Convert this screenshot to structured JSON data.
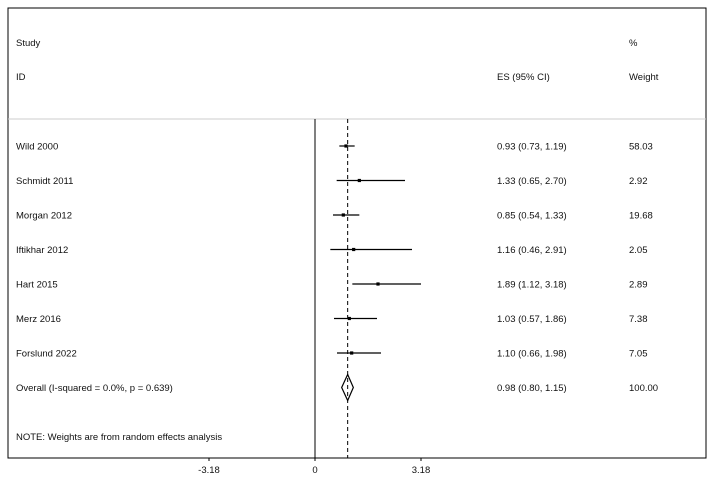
{
  "header": {
    "study_label": "Study",
    "id_label": "ID",
    "es_label": "ES (95% CI)",
    "percent_label": "%",
    "weight_label": "Weight"
  },
  "note": "NOTE: Weights are from random effects analysis",
  "colors": {
    "line": "#000000",
    "separator": "#cccccc",
    "background": "#ffffff"
  },
  "chart_data": {
    "type": "forest",
    "title": "",
    "xlabel": "",
    "ylabel": "",
    "xlim": [
      -6.36,
      6.36
    ],
    "xticks": [
      -3.18,
      0,
      3.18
    ],
    "xtick_labels": [
      "-3.18",
      "0",
      "3.18"
    ],
    "null_line": 0,
    "pooled_reference": 0.98,
    "studies": [
      {
        "id": "Wild 2000",
        "es": 0.93,
        "lo": 0.73,
        "hi": 1.19,
        "es_text": "0.93 (0.73, 1.19)",
        "weight": "58.03"
      },
      {
        "id": "Schmidt 2011",
        "es": 1.33,
        "lo": 0.65,
        "hi": 2.7,
        "es_text": "1.33 (0.65, 2.70)",
        "weight": "2.92"
      },
      {
        "id": "Morgan 2012",
        "es": 0.85,
        "lo": 0.54,
        "hi": 1.33,
        "es_text": "0.85 (0.54, 1.33)",
        "weight": "19.68"
      },
      {
        "id": "Iftikhar 2012",
        "es": 1.16,
        "lo": 0.46,
        "hi": 2.91,
        "es_text": "1.16 (0.46, 2.91)",
        "weight": "2.05"
      },
      {
        "id": "Hart 2015",
        "es": 1.89,
        "lo": 1.12,
        "hi": 3.18,
        "es_text": "1.89 (1.12, 3.18)",
        "weight": "2.89"
      },
      {
        "id": "Merz 2016",
        "es": 1.03,
        "lo": 0.57,
        "hi": 1.86,
        "es_text": "1.03 (0.57, 1.86)",
        "weight": "7.38"
      },
      {
        "id": "Forslund 2022",
        "es": 1.1,
        "lo": 0.66,
        "hi": 1.98,
        "es_text": "1.10 (0.66, 1.98)",
        "weight": "7.05"
      }
    ],
    "overall": {
      "label": "Overall  (I-squared = 0.0%, p = 0.639)",
      "es": 0.98,
      "lo": 0.8,
      "hi": 1.15,
      "es_text": "0.98 (0.80, 1.15)",
      "weight": "100.00"
    }
  }
}
